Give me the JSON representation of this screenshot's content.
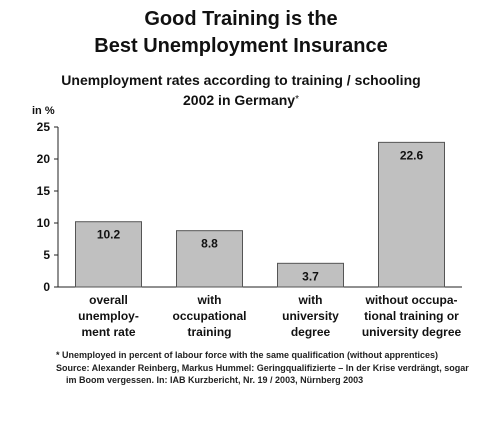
{
  "header": {
    "title_line1": "Good Training is the",
    "title_line2": "Best Unemployment Insurance",
    "subtitle_line1": "Unemployment rates according to training / schooling",
    "subtitle_line2": "2002 in Germany",
    "subtitle_marker": "*"
  },
  "chart_data": {
    "type": "bar",
    "ylabel": "in %",
    "ylim": [
      0,
      25
    ],
    "yticks": [
      0,
      5,
      10,
      15,
      20,
      25
    ],
    "categories": [
      [
        "overall",
        "unemploy-",
        "ment rate"
      ],
      [
        "with",
        "occupational",
        "training"
      ],
      [
        "with",
        "university",
        "degree"
      ],
      [
        "without occupa-",
        "tional training or",
        "university degree"
      ]
    ],
    "values": [
      10.2,
      8.8,
      3.7,
      22.6
    ],
    "data_labels": [
      "10.2",
      "8.8",
      "3.7",
      "22.6"
    ],
    "bar_color": "#c0c0c0",
    "grid": false,
    "legend": "none"
  },
  "footnotes": {
    "note": "* Unemployed in percent of labour force with the same qualification (without apprentices)",
    "source": "Source: Alexander Reinberg, Markus Hummel: Geringqualifizierte – In der Krise verdrängt, sogar im Boom vergessen. In: IAB Kurzbericht, Nr. 19 / 2003, Nürnberg 2003"
  }
}
